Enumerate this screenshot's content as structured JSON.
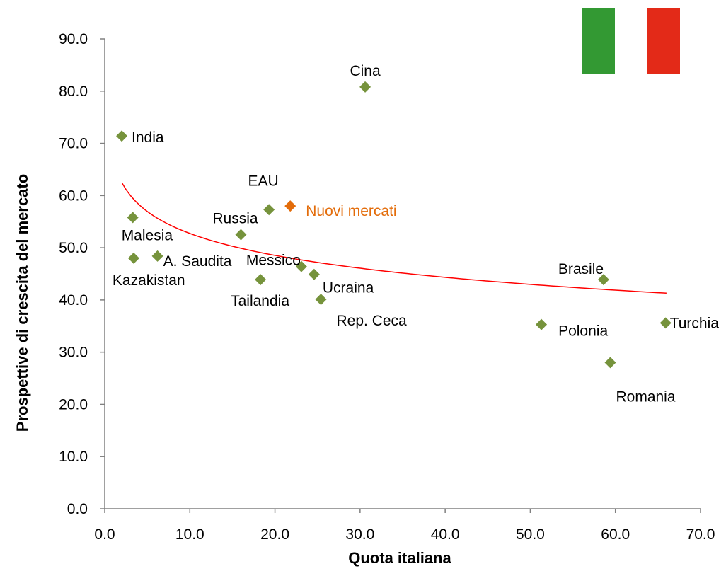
{
  "colors": {
    "point": "#76933c",
    "highlight_point": "#e36c0a",
    "trendline": "#ff0000",
    "axis": "#808080",
    "flag_green": "#339933",
    "flag_white": "#ffffff",
    "flag_red": "#e32a18"
  },
  "flag": {
    "icon": "italian-flag-icon"
  },
  "chart_data": {
    "type": "scatter",
    "xlabel": "Quota italiana",
    "ylabel": "Prospettive di crescita del mercato",
    "xlim": [
      0,
      70
    ],
    "ylim": [
      0,
      90
    ],
    "x_ticks": [
      "0.0",
      "10.0",
      "20.0",
      "30.0",
      "40.0",
      "50.0",
      "60.0",
      "70.0"
    ],
    "y_ticks": [
      "0.0",
      "10.0",
      "20.0",
      "30.0",
      "40.0",
      "50.0",
      "60.0",
      "70.0",
      "80.0",
      "90.0"
    ],
    "grid": false,
    "trendline": {
      "type": "logarithmic",
      "x_start": 2.0,
      "y_start": 62.5,
      "x_end": 66.0,
      "y_end": 41.3
    },
    "points": [
      {
        "label": "Cina",
        "x": 30.6,
        "y": 80.8
      },
      {
        "label": "India",
        "x": 2.0,
        "y": 71.4
      },
      {
        "label": "EAU",
        "x": 19.3,
        "y": 57.3
      },
      {
        "label": "Nuovi mercati",
        "x": 21.8,
        "y": 58.0,
        "highlight": true
      },
      {
        "label": "Russia",
        "x": 16.0,
        "y": 52.5
      },
      {
        "label": "Malesia",
        "x": 3.3,
        "y": 55.8
      },
      {
        "label": "A. Saudita",
        "x": 6.2,
        "y": 48.4
      },
      {
        "label": "Kazakistan",
        "x": 3.4,
        "y": 48.0
      },
      {
        "label": "Messico",
        "x": 23.1,
        "y": 46.4
      },
      {
        "label": "Tailandia",
        "x": 18.3,
        "y": 43.9
      },
      {
        "label": "Ucraina",
        "x": 24.6,
        "y": 44.9
      },
      {
        "label": "Rep. Ceca",
        "x": 25.4,
        "y": 40.1
      },
      {
        "label": "Brasile",
        "x": 58.6,
        "y": 43.9
      },
      {
        "label": "Polonia",
        "x": 51.3,
        "y": 35.3
      },
      {
        "label": "Turchia",
        "x": 65.9,
        "y": 35.6
      },
      {
        "label": "Romania",
        "x": 59.4,
        "y": 28.0
      }
    ]
  }
}
